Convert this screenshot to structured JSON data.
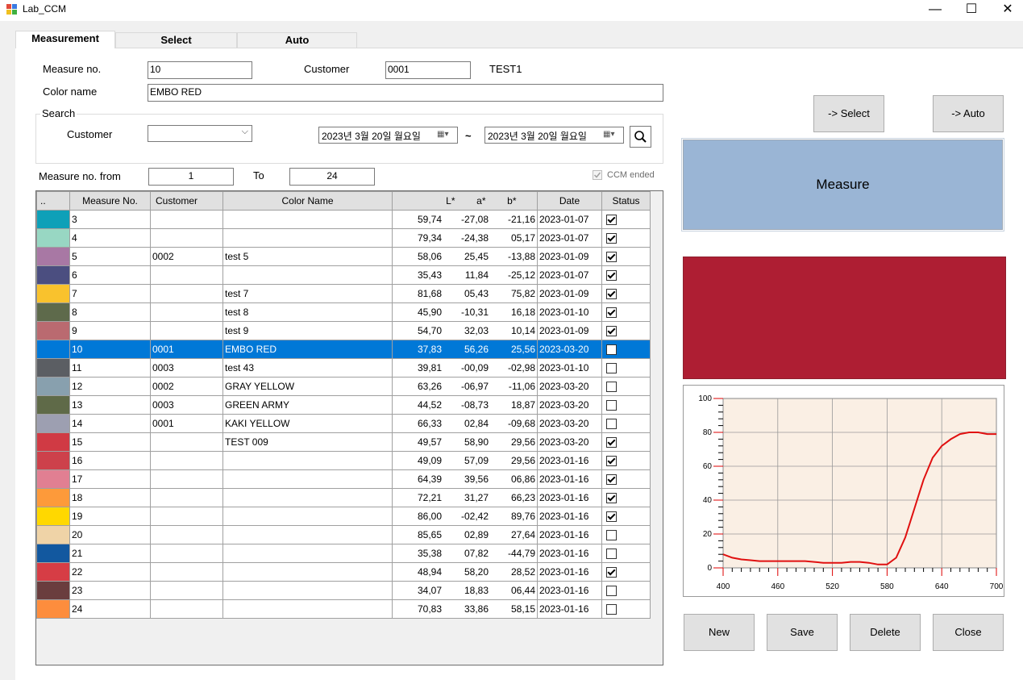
{
  "window": {
    "title": "Lab_CCM",
    "minimize": "—",
    "maximize": "☐",
    "close": "✕"
  },
  "tabs": [
    {
      "label": "Measurement"
    },
    {
      "label": "Select"
    },
    {
      "label": "Auto"
    }
  ],
  "form": {
    "measure_no_label": "Measure no.",
    "measure_no_value": "10",
    "customer_label": "Customer",
    "customer_value": "0001",
    "customer_name": "TEST1",
    "color_name_label": "Color name",
    "color_name_value": "EMBO RED"
  },
  "search": {
    "group_label": "Search",
    "customer_label": "Customer",
    "customer_selected": "",
    "date_from": "2023년   3월 20일 월요일",
    "date_to": "2023년   3월 20일 월요일",
    "tilde": "~",
    "from_label": "Measure no. from",
    "from_value": "1",
    "to_label": "To",
    "to_value": "24",
    "ccm_ended_label": "CCM ended"
  },
  "grid": {
    "columns": [
      "..",
      "Measure No.",
      "Customer",
      "Color Name",
      "L*",
      "a*",
      "b*",
      "Date",
      "Status"
    ],
    "rows": [
      {
        "swatch": "#0ea0b8",
        "no": "3",
        "customer": "",
        "name": "",
        "L": "59,74",
        "a": "-27,08",
        "b": "-21,16",
        "date": "2023-01-07",
        "status": true
      },
      {
        "swatch": "#98d7c3",
        "no": "4",
        "customer": "",
        "name": "",
        "L": "79,34",
        "a": "-24,38",
        "b": "05,17",
        "date": "2023-01-07",
        "status": true
      },
      {
        "swatch": "#a878a4",
        "no": "5",
        "customer": "0002",
        "name": "test 5",
        "L": "58,06",
        "a": "25,45",
        "b": "-13,88",
        "date": "2023-01-09",
        "status": true
      },
      {
        "swatch": "#4b4e80",
        "no": "6",
        "customer": "",
        "name": "",
        "L": "35,43",
        "a": "11,84",
        "b": "-25,12",
        "date": "2023-01-07",
        "status": true
      },
      {
        "swatch": "#f9c22d",
        "no": "7",
        "customer": "",
        "name": "test 7",
        "L": "81,68",
        "a": "05,43",
        "b": "75,82",
        "date": "2023-01-09",
        "status": true
      },
      {
        "swatch": "#5e6a4b",
        "no": "8",
        "customer": "",
        "name": "test 8",
        "L": "45,90",
        "a": "-10,31",
        "b": "16,18",
        "date": "2023-01-10",
        "status": true
      },
      {
        "swatch": "#ba6a70",
        "no": "9",
        "customer": "",
        "name": "test 9",
        "L": "54,70",
        "a": "32,03",
        "b": "10,14",
        "date": "2023-01-09",
        "status": true
      },
      {
        "swatch": "#0078d7",
        "no": "10",
        "customer": "0001",
        "name": "EMBO RED",
        "L": "37,83",
        "a": "56,26",
        "b": "25,56",
        "date": "2023-03-20",
        "status": false,
        "selected": true
      },
      {
        "swatch": "#5b5e63",
        "no": "11",
        "customer": "0003",
        "name": "test 43",
        "L": "39,81",
        "a": "-00,09",
        "b": "-02,98",
        "date": "2023-01-10",
        "status": false
      },
      {
        "swatch": "#88a0ae",
        "no": "12",
        "customer": "0002",
        "name": "GRAY YELLOW",
        "L": "63,26",
        "a": "-06,97",
        "b": "-11,06",
        "date": "2023-03-20",
        "status": false
      },
      {
        "swatch": "#5f6a48",
        "no": "13",
        "customer": "0003",
        "name": "GREEN ARMY",
        "L": "44,52",
        "a": "-08,73",
        "b": "18,87",
        "date": "2023-03-20",
        "status": false
      },
      {
        "swatch": "#9d9fb1",
        "no": "14",
        "customer": "0001",
        "name": "KAKI YELLOW",
        "L": "66,33",
        "a": "02,84",
        "b": "-09,68",
        "date": "2023-03-20",
        "status": false
      },
      {
        "swatch": "#d03a44",
        "no": "15",
        "customer": "",
        "name": "TEST 009",
        "L": "49,57",
        "a": "58,90",
        "b": "29,56",
        "date": "2023-03-20",
        "status": true
      },
      {
        "swatch": "#cd414b",
        "no": "16",
        "customer": "",
        "name": "",
        "L": "49,09",
        "a": "57,09",
        "b": "29,56",
        "date": "2023-01-16",
        "status": true
      },
      {
        "swatch": "#e17f92",
        "no": "17",
        "customer": "",
        "name": "",
        "L": "64,39",
        "a": "39,56",
        "b": "06,86",
        "date": "2023-01-16",
        "status": true
      },
      {
        "swatch": "#fd9a3a",
        "no": "18",
        "customer": "",
        "name": "",
        "L": "72,21",
        "a": "31,27",
        "b": "66,23",
        "date": "2023-01-16",
        "status": true
      },
      {
        "swatch": "#ffd800",
        "no": "19",
        "customer": "",
        "name": "",
        "L": "86,00",
        "a": "-02,42",
        "b": "89,76",
        "date": "2023-01-16",
        "status": true
      },
      {
        "swatch": "#efd3a7",
        "no": "20",
        "customer": "",
        "name": "",
        "L": "85,65",
        "a": "02,89",
        "b": "27,64",
        "date": "2023-01-16",
        "status": false
      },
      {
        "swatch": "#12589f",
        "no": "21",
        "customer": "",
        "name": "",
        "L": "35,38",
        "a": "07,82",
        "b": "-44,79",
        "date": "2023-01-16",
        "status": false
      },
      {
        "swatch": "#d63d45",
        "no": "22",
        "customer": "",
        "name": "",
        "L": "48,94",
        "a": "58,20",
        "b": "28,52",
        "date": "2023-01-16",
        "status": true
      },
      {
        "swatch": "#6a3d3e",
        "no": "23",
        "customer": "",
        "name": "",
        "L": "34,07",
        "a": "18,83",
        "b": "06,44",
        "date": "2023-01-16",
        "status": false
      },
      {
        "swatch": "#fd8d3d",
        "no": "24",
        "customer": "",
        "name": "",
        "L": "70,83",
        "a": "33,86",
        "b": "58,15",
        "date": "2023-01-16",
        "status": false
      }
    ]
  },
  "right": {
    "select_btn": "-> Select",
    "auto_btn": "-> Auto",
    "measure_btn": "Measure",
    "swatch_color": "#ae1e33",
    "new_btn": "New",
    "save_btn": "Save",
    "delete_btn": "Delete",
    "close_btn": "Close"
  },
  "chart_data": {
    "type": "line",
    "xlim": [
      400,
      700
    ],
    "ylim": [
      0,
      100
    ],
    "x_ticks": [
      "400",
      "460",
      "520",
      "580",
      "640",
      "700"
    ],
    "y_ticks": [
      "100",
      "80",
      "60",
      "40",
      "20",
      "0"
    ],
    "grid": true,
    "line_color": "#e01010",
    "background": "#faefe4",
    "series": [
      {
        "x": [
          400,
          410,
          420,
          430,
          440,
          450,
          460,
          470,
          480,
          490,
          500,
          510,
          520,
          530,
          540,
          550,
          560,
          570,
          580,
          590,
          600,
          610,
          620,
          630,
          640,
          650,
          660,
          670,
          680,
          690,
          700
        ],
        "values": [
          8,
          6,
          5,
          4.5,
          4,
          4,
          4,
          4,
          4,
          4,
          3.5,
          3,
          3,
          3,
          3.5,
          3.5,
          3,
          2,
          2,
          6,
          18,
          35,
          52,
          65,
          72,
          76,
          79,
          80,
          80,
          79,
          79
        ]
      }
    ]
  }
}
